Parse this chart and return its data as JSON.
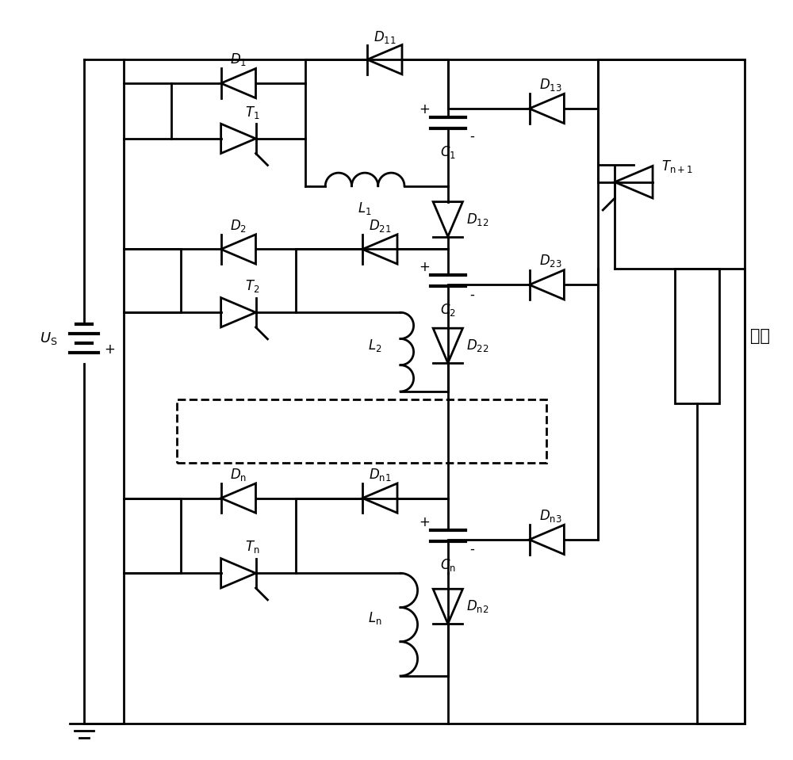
{
  "background_color": "#ffffff",
  "line_color": "#000000",
  "line_width": 2.0,
  "fig_width": 10.0,
  "fig_height": 9.59
}
